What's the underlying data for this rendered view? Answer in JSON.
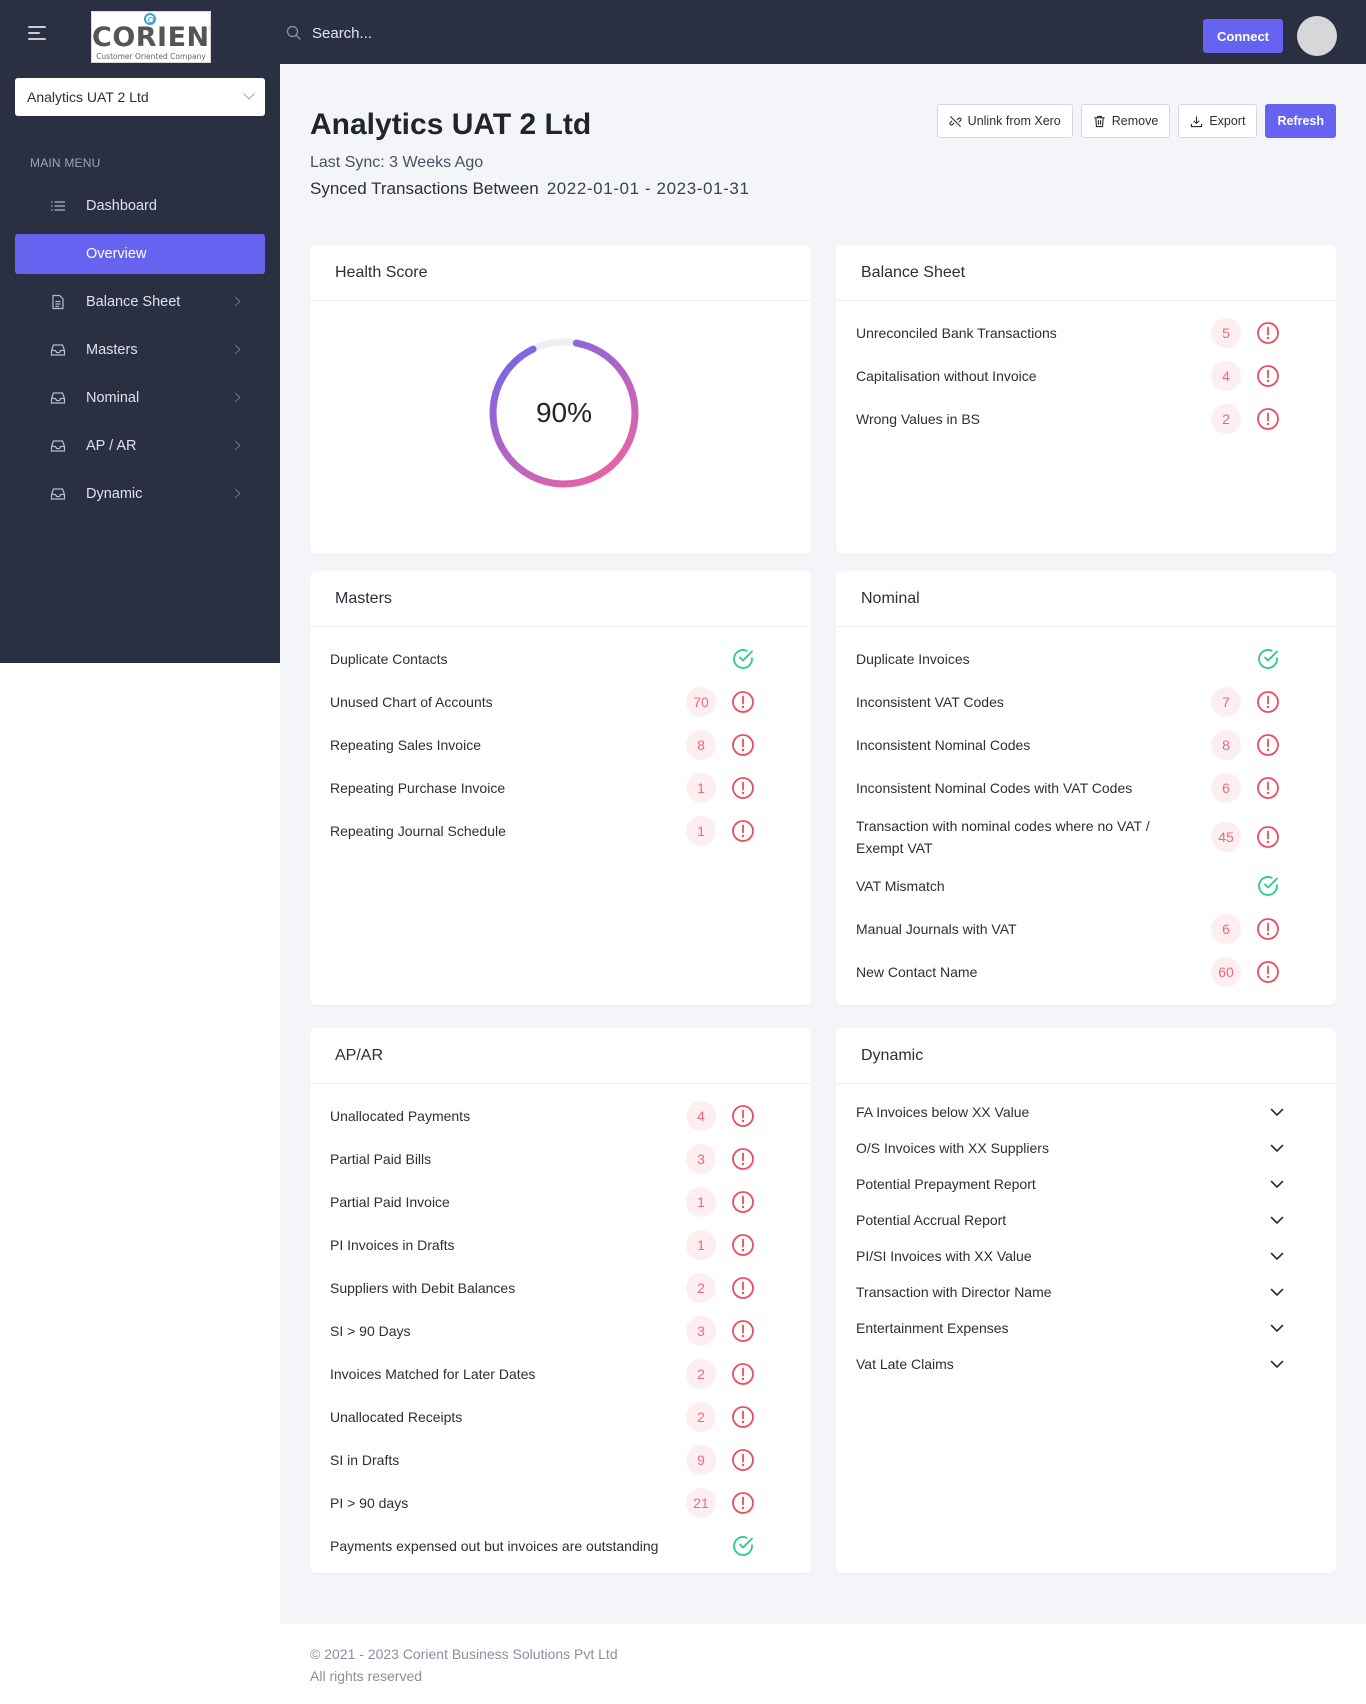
{
  "app": {
    "logo_text": "CORIENT",
    "logo_tagline": "Customer Oriented Company"
  },
  "topbar": {
    "search_placeholder": "Search...",
    "connect_label": "Connect"
  },
  "sidebar": {
    "company": "Analytics UAT 2 Ltd",
    "menu_title": "MAIN MENU",
    "items": [
      {
        "label": "Dashboard",
        "icon": "list-icon"
      },
      {
        "label": "Overview",
        "icon": ""
      },
      {
        "label": "Balance Sheet",
        "icon": "document-icon"
      },
      {
        "label": "Masters",
        "icon": "inbox-icon"
      },
      {
        "label": "Nominal",
        "icon": "inbox-icon"
      },
      {
        "label": "AP / AR",
        "icon": "inbox-icon"
      },
      {
        "label": "Dynamic",
        "icon": "inbox-icon"
      }
    ]
  },
  "header": {
    "title": "Analytics UAT 2 Ltd",
    "last_sync": "Last Sync: 3 Weeks Ago",
    "synced_label": "Synced Transactions Between",
    "synced_range": "2022-01-01 - 2023-01-31",
    "actions": {
      "unlink": "Unlink from Xero",
      "remove": "Remove",
      "export": "Export",
      "refresh": "Refresh"
    }
  },
  "health": {
    "title": "Health Score",
    "score_label": "90%",
    "score": 90
  },
  "balance_sheet": {
    "title": "Balance Sheet",
    "items": [
      {
        "label": "Unreconciled Bank Transactions",
        "count": "5",
        "status": "warning"
      },
      {
        "label": "Capitalisation without Invoice",
        "count": "4",
        "status": "warning"
      },
      {
        "label": "Wrong Values in BS",
        "count": "2",
        "status": "warning"
      }
    ]
  },
  "masters": {
    "title": "Masters",
    "items": [
      {
        "label": "Duplicate Contacts",
        "count": "",
        "status": "ok"
      },
      {
        "label": "Unused Chart of Accounts",
        "count": "70",
        "status": "warning"
      },
      {
        "label": "Repeating Sales Invoice",
        "count": "8",
        "status": "warning"
      },
      {
        "label": "Repeating Purchase Invoice",
        "count": "1",
        "status": "warning"
      },
      {
        "label": "Repeating Journal Schedule",
        "count": "1",
        "status": "warning"
      }
    ]
  },
  "nominal": {
    "title": "Nominal",
    "items": [
      {
        "label": "Duplicate Invoices",
        "count": "",
        "status": "ok"
      },
      {
        "label": "Inconsistent VAT Codes",
        "count": "7",
        "status": "warning"
      },
      {
        "label": "Inconsistent Nominal Codes",
        "count": "8",
        "status": "warning"
      },
      {
        "label": "Inconsistent Nominal Codes with VAT Codes",
        "count": "6",
        "status": "warning"
      },
      {
        "label": "Transaction with nominal codes where no VAT / Exempt VAT",
        "count": "45",
        "status": "warning"
      },
      {
        "label": "VAT Mismatch",
        "count": "",
        "status": "ok"
      },
      {
        "label": "Manual Journals with VAT",
        "count": "6",
        "status": "warning"
      },
      {
        "label": "New Contact Name",
        "count": "60",
        "status": "warning"
      }
    ]
  },
  "apar": {
    "title": "AP/AR",
    "items": [
      {
        "label": "Unallocated Payments",
        "count": "4",
        "status": "warning"
      },
      {
        "label": "Partial Paid Bills",
        "count": "3",
        "status": "warning"
      },
      {
        "label": "Partial Paid Invoice",
        "count": "1",
        "status": "warning"
      },
      {
        "label": "PI Invoices in Drafts",
        "count": "1",
        "status": "warning"
      },
      {
        "label": "Suppliers with Debit Balances",
        "count": "2",
        "status": "warning"
      },
      {
        "label": "SI > 90 Days",
        "count": "3",
        "status": "warning"
      },
      {
        "label": "Invoices Matched for Later Dates",
        "count": "2",
        "status": "warning"
      },
      {
        "label": "Unallocated Receipts",
        "count": "2",
        "status": "warning"
      },
      {
        "label": "SI in Drafts",
        "count": "9",
        "status": "warning"
      },
      {
        "label": "PI > 90 days",
        "count": "21",
        "status": "warning"
      },
      {
        "label": "Payments expensed out but invoices are outstanding",
        "count": "",
        "status": "ok"
      }
    ]
  },
  "dynamic": {
    "title": "Dynamic",
    "items": [
      "FA Invoices below XX Value",
      "O/S Invoices with XX Suppliers",
      "Potential Prepayment Report",
      "Potential Accrual Report",
      "PI/SI Invoices with XX Value",
      "Transaction with Director Name",
      "Entertainment Expenses",
      "Vat Late Claims"
    ]
  },
  "footer": {
    "copyright": "© 2021 - 2023 Corient Business Solutions Pvt Ltd",
    "rights": "All rights reserved"
  },
  "colors": {
    "accent": "#6563f0",
    "sidebar_bg": "#2a2f42",
    "warning": "#ec4d62",
    "ok": "#2cc98e",
    "gauge_start": "#f7649a",
    "gauge_end": "#6a66ee"
  }
}
